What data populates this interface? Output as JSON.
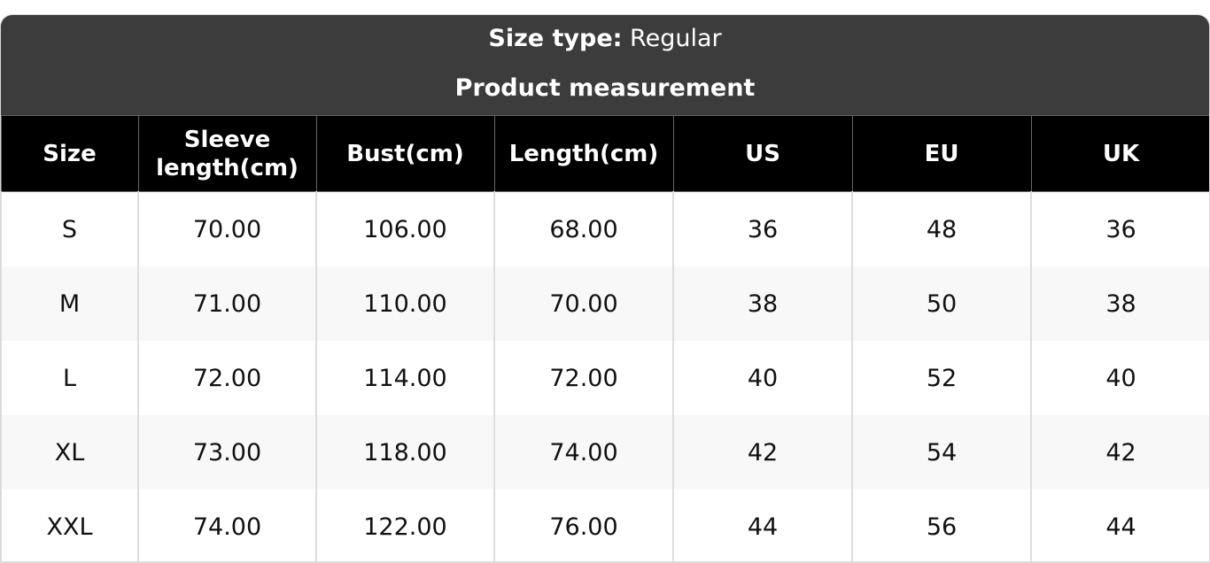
{
  "header": {
    "size_type_label": "Size type:",
    "size_type_value": "Regular",
    "subtitle": "Product measurement"
  },
  "columns": [
    "Size",
    "Sleeve length(cm)",
    "Bust(cm)",
    "Length(cm)",
    "US",
    "EU",
    "UK"
  ],
  "rows": [
    [
      "S",
      "70.00",
      "106.00",
      "68.00",
      "36",
      "48",
      "36"
    ],
    [
      "M",
      "71.00",
      "110.00",
      "70.00",
      "38",
      "50",
      "38"
    ],
    [
      "L",
      "72.00",
      "114.00",
      "72.00",
      "40",
      "52",
      "40"
    ],
    [
      "XL",
      "73.00",
      "118.00",
      "74.00",
      "42",
      "54",
      "42"
    ],
    [
      "XXL",
      "74.00",
      "122.00",
      "76.00",
      "44",
      "56",
      "44"
    ]
  ],
  "colors": {
    "title_bg": "#3c3c3c",
    "header_bg": "#000000",
    "alt_row": "#f8f8f8"
  }
}
